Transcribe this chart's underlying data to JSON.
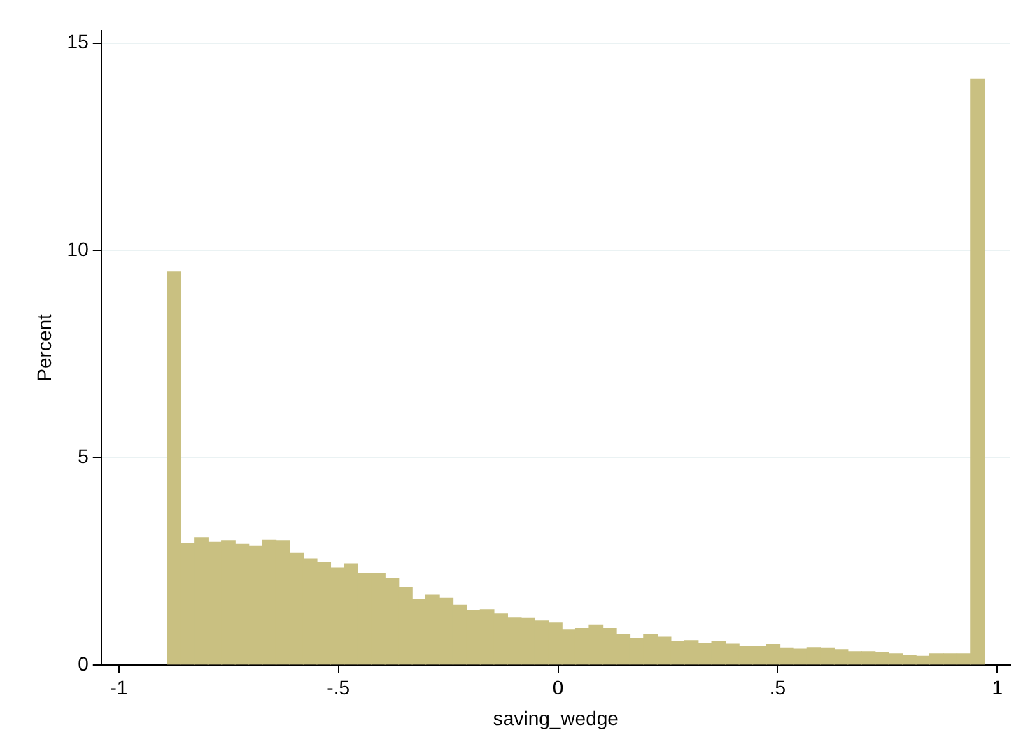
{
  "chart_data": {
    "type": "histogram",
    "xlabel": "saving_wedge",
    "ylabel": "Percent",
    "color": "#c9c081",
    "bins": [
      -0.89,
      -0.859,
      -0.828,
      -0.797,
      -0.766,
      -0.735,
      -0.704,
      -0.673,
      -0.642,
      -0.611,
      -0.58,
      -0.549,
      -0.518,
      -0.487,
      -0.456,
      -0.425,
      -0.394,
      -0.363,
      -0.332,
      -0.301,
      -0.27,
      -0.239,
      -0.208,
      -0.177,
      -0.146,
      -0.115,
      -0.084,
      -0.053,
      -0.022,
      0.009,
      0.04,
      0.071,
      0.102,
      0.133,
      0.164,
      0.195,
      0.226,
      0.257,
      0.288,
      0.319,
      0.35,
      0.381,
      0.412,
      0.443,
      0.474,
      0.505,
      0.536,
      0.567,
      0.598,
      0.629,
      0.66,
      0.691,
      0.722,
      0.753,
      0.784,
      0.815,
      0.846,
      0.877,
      0.908,
      0.939,
      0.97
    ],
    "values": [
      9.48,
      2.93,
      3.07,
      2.96,
      3.0,
      2.91,
      2.86,
      3.01,
      3.0,
      2.69,
      2.56,
      2.48,
      2.34,
      2.44,
      2.21,
      2.21,
      2.09,
      1.86,
      1.59,
      1.68,
      1.61,
      1.44,
      1.3,
      1.33,
      1.23,
      1.13,
      1.12,
      1.06,
      1.01,
      0.84,
      0.88,
      0.95,
      0.88,
      0.73,
      0.64,
      0.73,
      0.67,
      0.56,
      0.59,
      0.52,
      0.56,
      0.5,
      0.44,
      0.44,
      0.49,
      0.41,
      0.38,
      0.42,
      0.41,
      0.37,
      0.32,
      0.32,
      0.3,
      0.27,
      0.24,
      0.21,
      0.27,
      0.27,
      0.27,
      14.13
    ],
    "xlim": [
      -1.04,
      1.03
    ],
    "ylim": [
      0,
      15.3
    ],
    "xticks": [
      -1,
      {
        "value": -0.5,
        "label": "-.5"
      },
      0,
      {
        "value": 0.5,
        "label": ".5"
      },
      1
    ],
    "yticks": [
      0,
      5,
      10,
      15
    ],
    "grid": "y"
  }
}
